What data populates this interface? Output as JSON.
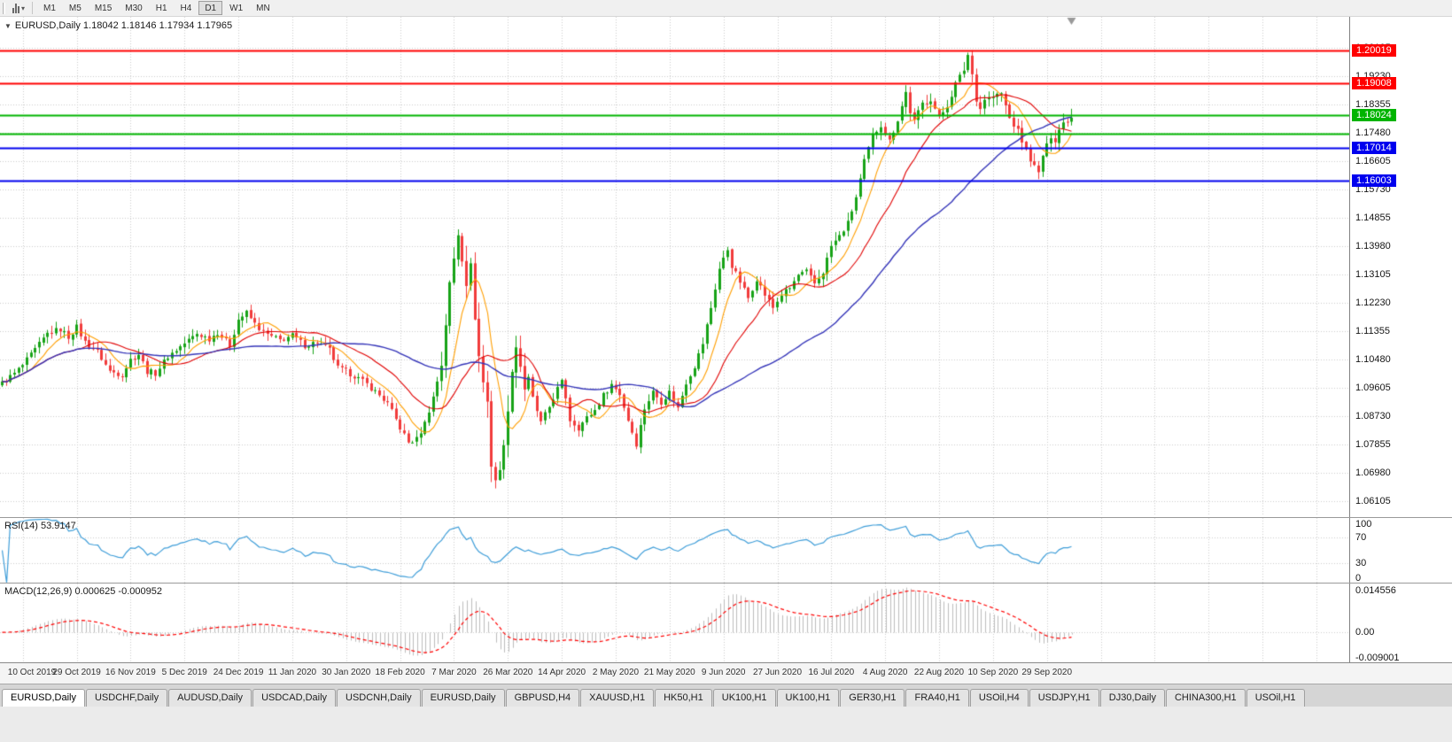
{
  "toolbar": {
    "periods": [
      "M1",
      "M5",
      "M15",
      "M30",
      "H1",
      "H4",
      "D1",
      "W1",
      "MN"
    ],
    "active_period": "D1"
  },
  "chart": {
    "symbol": "EURUSD",
    "timeframe": "Daily",
    "header": "EURUSD,Daily 1.18042 1.18146 1.17934 1.17965",
    "open": "1.18042",
    "high": "1.18146",
    "low": "1.17934",
    "close": "1.17965"
  },
  "price_axis": {
    "ticks": [
      "1.20105",
      "1.19230",
      "1.18355",
      "1.17480",
      "1.16605",
      "1.15730",
      "1.14855",
      "1.13980",
      "1.13105",
      "1.12230",
      "1.11355",
      "1.10480",
      "1.09605",
      "1.08730",
      "1.07855",
      "1.06980",
      "1.06105"
    ]
  },
  "hlines": [
    {
      "price": 1.20019,
      "label": "1.20019",
      "color": "#ff0000",
      "box": true
    },
    {
      "price": 1.19008,
      "label": "1.19008",
      "color": "#ff0000",
      "box": true
    },
    {
      "price": 1.18024,
      "label": "1.18024",
      "color": "#00b400",
      "box": true
    },
    {
      "price": 1.1745,
      "label": "1.17450",
      "color": "#00b400",
      "box": false
    },
    {
      "price": 1.17014,
      "label": "1.17014",
      "color": "#0000ee",
      "box": true
    },
    {
      "price": 1.16003,
      "label": "1.16003",
      "color": "#0000ee",
      "box": true
    }
  ],
  "rsi": {
    "label": "RSI(14) 53.9147",
    "period": 14,
    "value": "53.9147",
    "axis_labels": [
      "100",
      "70",
      "30",
      "0"
    ],
    "level_lines": [
      70,
      30
    ]
  },
  "macd": {
    "label": "MACD(12,26,9) 0.000625 -0.000952",
    "fast": 12,
    "slow": 26,
    "signal": 9,
    "values": [
      "0.000625",
      "-0.000952"
    ],
    "axis_labels": [
      "0.014556",
      "0.00",
      "-0.009001"
    ]
  },
  "tabs": {
    "active_index": 0,
    "items": [
      "EURUSD,Daily",
      "USDCHF,Daily",
      "AUDUSD,Daily",
      "USDCAD,Daily",
      "USDCNH,Daily",
      "EURUSD,Daily",
      "GBPUSD,H4",
      "XAUUSD,H1",
      "HK50,H1",
      "UK100,H1",
      "UK100,H1",
      "GER30,H1",
      "FRA40,H1",
      "USOil,H4",
      "USDJPY,H1",
      "DJ30,Daily",
      "CHINA300,H1",
      "USOil,H1"
    ]
  },
  "theme": {
    "up": "#17a317",
    "down": "#f13b3b",
    "ma_fast": "#ff9e00",
    "ma_mid": "#e00000",
    "ma_slow": "#3434b8",
    "rsi": "#3e9dd8",
    "macd_hist": "#bcbcbc",
    "macd_signal": "#ff0000",
    "grid": "#cccccc",
    "marker": "#999999"
  },
  "chart_data": {
    "type": "candlestick",
    "symbol": "EURUSD",
    "timeframe": "Daily",
    "price_range": [
      1.0565,
      1.2105
    ],
    "candle_count": 259,
    "candles_per_gridline": 13,
    "first_gridline_index": 5,
    "x_labels": [
      "10 Oct 2019",
      "29 Oct 2019",
      "16 Nov 2019",
      "5 Dec 2019",
      "24 Dec 2019",
      "11 Jan 2020",
      "30 Jan 2020",
      "18 Feb 2020",
      "7 Mar 2020",
      "26 Mar 2020",
      "14 Apr 2020",
      "2 May 2020",
      "21 May 2020",
      "9 Jun 2020",
      "27 Jun 2020",
      "16 Jul 2020",
      "4 Aug 2020",
      "22 Aug 2020",
      "10 Sep 2020",
      "29 Sep 2020"
    ],
    "anchors": [
      [
        0,
        1.0975
      ],
      [
        3,
        1.1005
      ],
      [
        5,
        1.103
      ],
      [
        8,
        1.1078
      ],
      [
        11,
        1.1128
      ],
      [
        14,
        1.1142
      ],
      [
        16,
        1.1118
      ],
      [
        18,
        1.1148
      ],
      [
        20,
        1.1102
      ],
      [
        23,
        1.1072
      ],
      [
        26,
        1.1012
      ],
      [
        29,
        1.1002
      ],
      [
        31,
        1.1048
      ],
      [
        33,
        1.1065
      ],
      [
        35,
        1.1012
      ],
      [
        37,
        1.1006
      ],
      [
        40,
        1.1058
      ],
      [
        42,
        1.1078
      ],
      [
        44,
        1.1098
      ],
      [
        47,
        1.1128
      ],
      [
        50,
        1.1112
      ],
      [
        52,
        1.1132
      ],
      [
        55,
        1.1092
      ],
      [
        57,
        1.1172
      ],
      [
        59,
        1.1192
      ],
      [
        61,
        1.1158
      ],
      [
        63,
        1.1132
      ],
      [
        65,
        1.1118
      ],
      [
        67,
        1.1108
      ],
      [
        70,
        1.1122
      ],
      [
        73,
        1.1092
      ],
      [
        76,
        1.1102
      ],
      [
        79,
        1.1078
      ],
      [
        81,
        1.1022
      ],
      [
        83,
        1.1012
      ],
      [
        85,
        1.0998
      ],
      [
        88,
        1.0972
      ],
      [
        91,
        1.0938
      ],
      [
        93,
        1.0912
      ],
      [
        96,
        1.0838
      ],
      [
        98,
        1.0792
      ],
      [
        100,
        1.0802
      ],
      [
        102,
        1.0852
      ],
      [
        104,
        1.0932
      ],
      [
        106,
        1.1032
      ],
      [
        108,
        1.1282
      ],
      [
        110,
        1.1435
      ],
      [
        111,
        1.1358
      ],
      [
        112,
        1.1282
      ],
      [
        113,
        1.1338
      ],
      [
        114,
        1.1178
      ],
      [
        115,
        1.1058
      ],
      [
        116,
        1.0978
      ],
      [
        117,
        1.0918
      ],
      [
        118,
        1.0722
      ],
      [
        119,
        1.0678
      ],
      [
        120,
        1.0702
      ],
      [
        121,
        1.0792
      ],
      [
        122,
        1.0882
      ],
      [
        123,
        1.1018
      ],
      [
        124,
        1.1088
      ],
      [
        125,
        1.1028
      ],
      [
        126,
        1.0958
      ],
      [
        127,
        1.0988
      ],
      [
        128,
        1.0928
      ],
      [
        130,
        1.0852
      ],
      [
        132,
        1.0902
      ],
      [
        134,
        1.0958
      ],
      [
        135,
        1.0978
      ],
      [
        136,
        1.0932
      ],
      [
        137,
        1.0862
      ],
      [
        139,
        1.0838
      ],
      [
        141,
        1.0868
      ],
      [
        143,
        1.0892
      ],
      [
        145,
        1.0938
      ],
      [
        147,
        1.0972
      ],
      [
        149,
        1.0942
      ],
      [
        151,
        1.0862
      ],
      [
        153,
        1.0788
      ],
      [
        155,
        1.0898
      ],
      [
        157,
        1.0948
      ],
      [
        159,
        1.0918
      ],
      [
        161,
        1.0948
      ],
      [
        163,
        1.0898
      ],
      [
        165,
        1.0978
      ],
      [
        167,
        1.1028
      ],
      [
        169,
        1.1098
      ],
      [
        171,
        1.1208
      ],
      [
        173,
        1.1328
      ],
      [
        175,
        1.1388
      ],
      [
        176,
        1.1338
      ],
      [
        178,
        1.1288
      ],
      [
        180,
        1.1238
      ],
      [
        182,
        1.1298
      ],
      [
        184,
        1.1248
      ],
      [
        186,
        1.1208
      ],
      [
        188,
        1.1248
      ],
      [
        190,
        1.1268
      ],
      [
        192,
        1.1308
      ],
      [
        194,
        1.1318
      ],
      [
        196,
        1.1282
      ],
      [
        198,
        1.1318
      ],
      [
        200,
        1.1398
      ],
      [
        202,
        1.1428
      ],
      [
        204,
        1.1468
      ],
      [
        206,
        1.1548
      ],
      [
        208,
        1.1658
      ],
      [
        210,
        1.1738
      ],
      [
        212,
        1.1772
      ],
      [
        214,
        1.1722
      ],
      [
        216,
        1.1788
      ],
      [
        218,
        1.1872
      ],
      [
        219,
        1.1812
      ],
      [
        220,
        1.1782
      ],
      [
        222,
        1.1838
      ],
      [
        224,
        1.1852
      ],
      [
        226,
        1.1792
      ],
      [
        228,
        1.1832
      ],
      [
        230,
        1.1898
      ],
      [
        232,
        1.1942
      ],
      [
        233,
        1.1988
      ],
      [
        234,
        1.1928
      ],
      [
        235,
        1.1852
      ],
      [
        236,
        1.1822
      ],
      [
        237,
        1.1852
      ],
      [
        239,
        1.1858
      ],
      [
        241,
        1.1868
      ],
      [
        243,
        1.1792
      ],
      [
        245,
        1.1752
      ],
      [
        247,
        1.1692
      ],
      [
        249,
        1.1642
      ],
      [
        250,
        1.1622
      ],
      [
        251,
        1.1678
      ],
      [
        252,
        1.1706
      ],
      [
        253,
        1.1738
      ],
      [
        254,
        1.1726
      ],
      [
        255,
        1.1758
      ],
      [
        256,
        1.1778
      ],
      [
        257,
        1.1788
      ],
      [
        258,
        1.1796
      ]
    ],
    "moving_averages": [
      {
        "name": "fast",
        "period": 8,
        "color_key": "ma_fast"
      },
      {
        "name": "mid",
        "period": 20,
        "color_key": "ma_mid"
      },
      {
        "name": "slow",
        "period": 50,
        "color_key": "ma_slow"
      }
    ],
    "macd_axis_range": [
      -0.009,
      0.0146
    ]
  }
}
